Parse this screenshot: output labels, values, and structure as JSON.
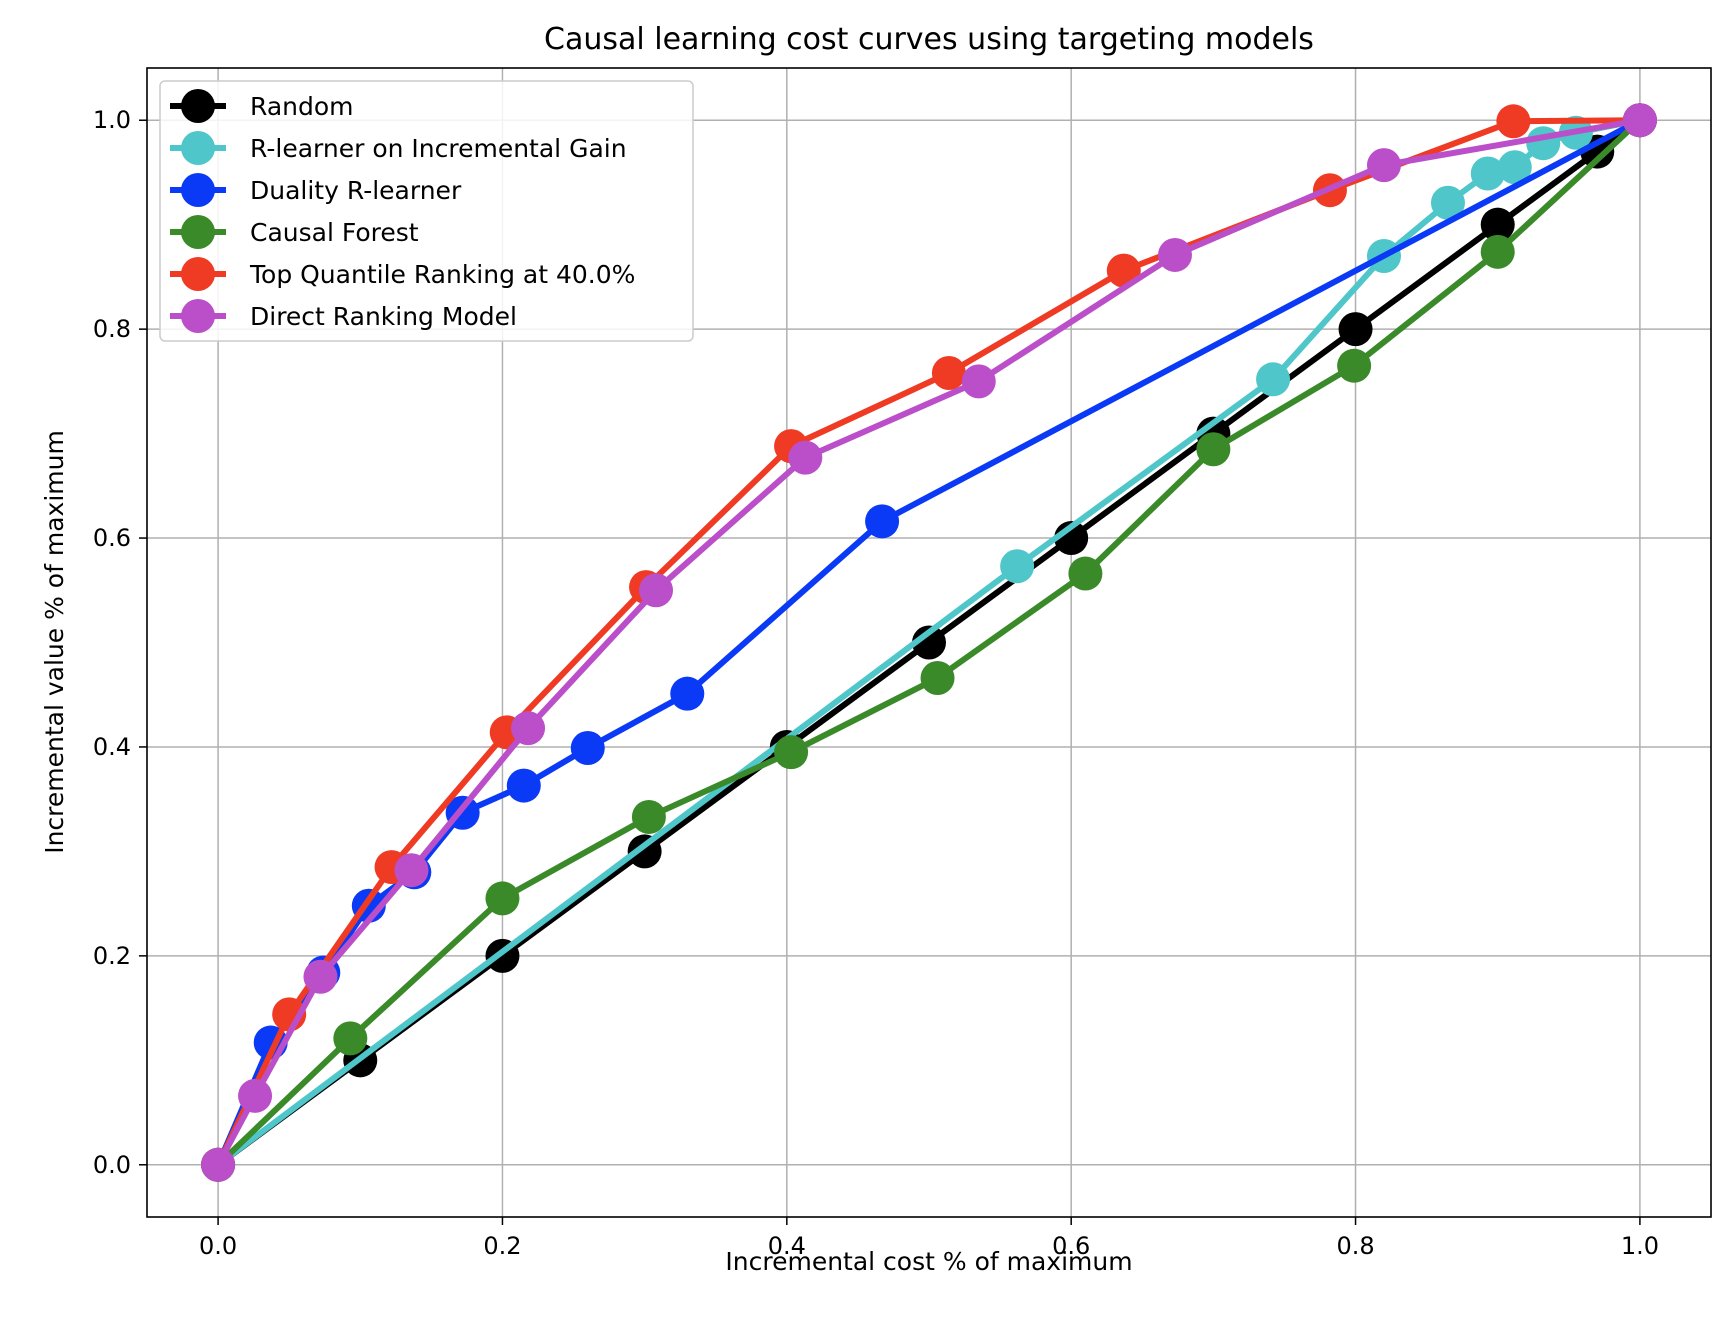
{
  "chart_data": {
    "type": "line",
    "title": "Causal learning cost curves using targeting models",
    "xlabel": "Incremental cost % of maximum",
    "ylabel": "Incremental value % of maximum",
    "xlim": [
      -0.05,
      1.05
    ],
    "ylim": [
      -0.05,
      1.05
    ],
    "x_ticks": [
      "0.0",
      "0.2",
      "0.4",
      "0.6",
      "0.8",
      "1.0"
    ],
    "y_ticks": [
      "0.0",
      "0.2",
      "0.4",
      "0.6",
      "0.8",
      "1.0"
    ],
    "grid": true,
    "legend_position": "upper-left",
    "series": [
      {
        "name": "Random",
        "color": "#000000",
        "x": [
          0.0,
          0.1,
          0.2,
          0.3,
          0.4,
          0.5,
          0.6,
          0.7,
          0.8,
          0.9,
          0.97,
          1.0
        ],
        "y": [
          0.0,
          0.1,
          0.2,
          0.3,
          0.4,
          0.5,
          0.6,
          0.7,
          0.8,
          0.9,
          0.97,
          1.0
        ]
      },
      {
        "name": "R-learner on Incremental Gain",
        "color": "#4fc6c9",
        "x": [
          0.0,
          0.562,
          0.742,
          0.82,
          0.865,
          0.893,
          0.912,
          0.932,
          0.955,
          1.0
        ],
        "y": [
          0.0,
          0.573,
          0.752,
          0.87,
          0.921,
          0.949,
          0.955,
          0.978,
          0.988,
          1.0
        ]
      },
      {
        "name": "Duality R-learner",
        "color": "#0a3af5",
        "x": [
          0.0,
          0.037,
          0.074,
          0.106,
          0.138,
          0.172,
          0.215,
          0.26,
          0.33,
          0.467,
          1.0
        ],
        "y": [
          0.0,
          0.117,
          0.184,
          0.248,
          0.28,
          0.337,
          0.363,
          0.399,
          0.451,
          0.616,
          1.0
        ]
      },
      {
        "name": "Causal Forest",
        "color": "#3a8a2a",
        "x": [
          0.0,
          0.093,
          0.2,
          0.303,
          0.403,
          0.506,
          0.61,
          0.7,
          0.799,
          0.9,
          1.0
        ],
        "y": [
          0.0,
          0.121,
          0.255,
          0.333,
          0.395,
          0.466,
          0.566,
          0.685,
          0.765,
          0.874,
          1.0
        ]
      },
      {
        "name": "Top Quantile Ranking at 40.0%",
        "color": "#ef3b24",
        "x": [
          0.0,
          0.05,
          0.122,
          0.203,
          0.301,
          0.403,
          0.514,
          0.637,
          0.782,
          0.911,
          1.0
        ],
        "y": [
          0.0,
          0.144,
          0.285,
          0.414,
          0.553,
          0.688,
          0.758,
          0.856,
          0.933,
          0.999,
          1.0
        ]
      },
      {
        "name": "Direct Ranking Model",
        "color": "#bb4fc9",
        "x": [
          0.0,
          0.026,
          0.072,
          0.136,
          0.218,
          0.308,
          0.413,
          0.535,
          0.673,
          0.82,
          1.0
        ],
        "y": [
          0.0,
          0.066,
          0.18,
          0.282,
          0.418,
          0.55,
          0.677,
          0.75,
          0.871,
          0.957,
          1.0
        ]
      }
    ]
  }
}
